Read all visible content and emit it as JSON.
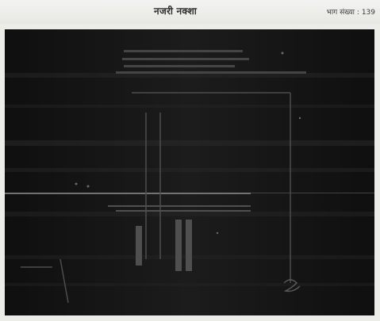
{
  "header": {
    "title": "नजरी नक्शा",
    "page_label": "भाग संख्या",
    "page_sep": ":",
    "page_value": "139"
  },
  "icons": {
    "scan": "scanned-map-image"
  },
  "colors": {
    "page_bg": "#ecece9",
    "scan_bg": "#151515"
  }
}
